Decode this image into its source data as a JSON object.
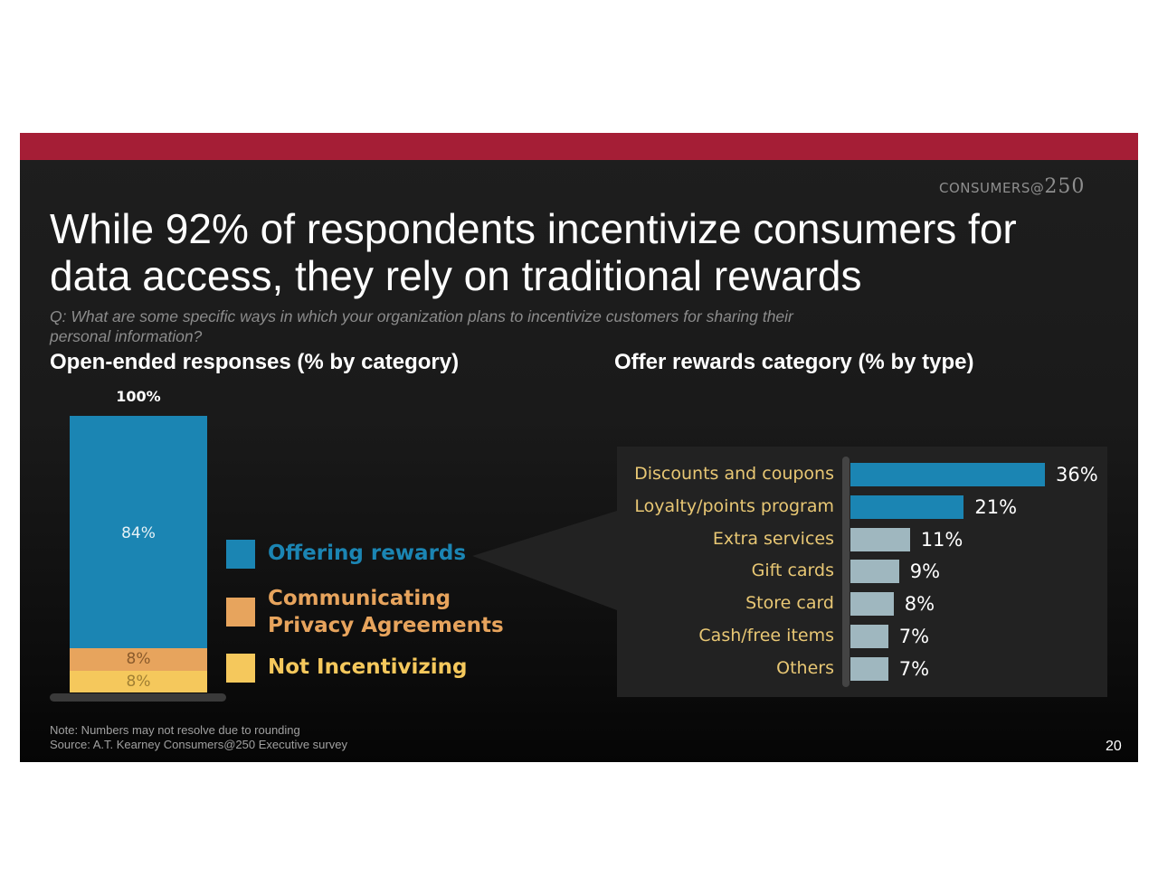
{
  "brand": {
    "prefix": "CONSUMERS@",
    "number": "250"
  },
  "title_line1": "While 92% of respondents incentivize consumers for",
  "title_line2": "data access, they rely on traditional rewards",
  "question_line1": "Q: What are some specific ways in which your organization plans to incentivize customers for sharing their",
  "question_line2": "personal information?",
  "note": "Note: Numbers may not resolve due to rounding",
  "source": "Source: A.T. Kearney Consumers@250 Executive survey",
  "page_number": "20",
  "colors": {
    "top_bar": "#a51e36",
    "offering": "#1b85b3",
    "communicating": "#e7a45d",
    "not_incentivizing": "#f5c85c",
    "bar_primary": "#1b85b3",
    "bar_secondary": "#9fb7bf",
    "category_text": "#e8c774"
  },
  "chart_data": [
    {
      "type": "bar",
      "stacked": true,
      "title": "Open-ended responses (% by category)",
      "total_label": "100%",
      "series": [
        {
          "name": "Offering rewards",
          "value": 84,
          "label": "84%"
        },
        {
          "name": "Communicating Privacy Agreements",
          "value": 8,
          "label": "8%"
        },
        {
          "name": "Not Incentivizing",
          "value": 8,
          "label": "8%"
        }
      ],
      "legend": {
        "offering": "Offering rewards",
        "communicating_line1": "Communicating",
        "communicating_line2": "Privacy Agreements",
        "not_incentivizing": "Not Incentivizing"
      }
    },
    {
      "type": "bar",
      "orientation": "horizontal",
      "title": "Offer rewards category (% by type)",
      "categories": [
        "Discounts and coupons",
        "Loyalty/points program",
        "Extra services",
        "Gift cards",
        "Store card",
        "Cash/free items",
        "Others"
      ],
      "values": [
        36,
        21,
        11,
        9,
        8,
        7,
        7
      ],
      "value_labels": [
        "36%",
        "21%",
        "11%",
        "9%",
        "8%",
        "7%",
        "7%"
      ],
      "highlighted": [
        true,
        true,
        false,
        false,
        false,
        false,
        false
      ],
      "xlim": [
        0,
        36
      ]
    }
  ]
}
